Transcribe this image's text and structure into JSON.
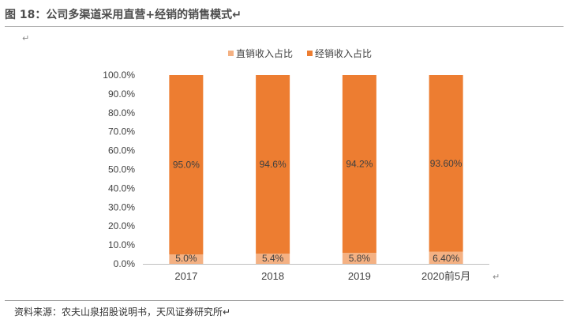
{
  "figure": {
    "title": "图 18：公司多渠道采用直营+经销的销售模式↵",
    "return_mark": "↵",
    "source": "资料来源：农夫山泉招股说明书，天风证券研究所↵"
  },
  "chart_data": {
    "type": "bar",
    "stacked": true,
    "percent": true,
    "categories": [
      "2017",
      "2018",
      "2019",
      "2020前5月"
    ],
    "series": [
      {
        "name": "直销收入占比",
        "values": [
          5.0,
          5.4,
          5.8,
          6.4
        ],
        "labels": [
          "5.0%",
          "5.4%",
          "5.8%",
          "6.40%"
        ],
        "color": "#f4b183"
      },
      {
        "name": "经销收入占比",
        "values": [
          95.0,
          94.6,
          94.2,
          93.6
        ],
        "labels": [
          "95.0%",
          "94.6%",
          "94.2%",
          "93.60%"
        ],
        "color": "#ed7d31"
      }
    ],
    "ylim": [
      0,
      100
    ],
    "yticks": [
      "0.0%",
      "10.0%",
      "20.0%",
      "30.0%",
      "40.0%",
      "50.0%",
      "60.0%",
      "70.0%",
      "80.0%",
      "90.0%",
      "100.0%"
    ],
    "grid": false,
    "legend": "top"
  }
}
